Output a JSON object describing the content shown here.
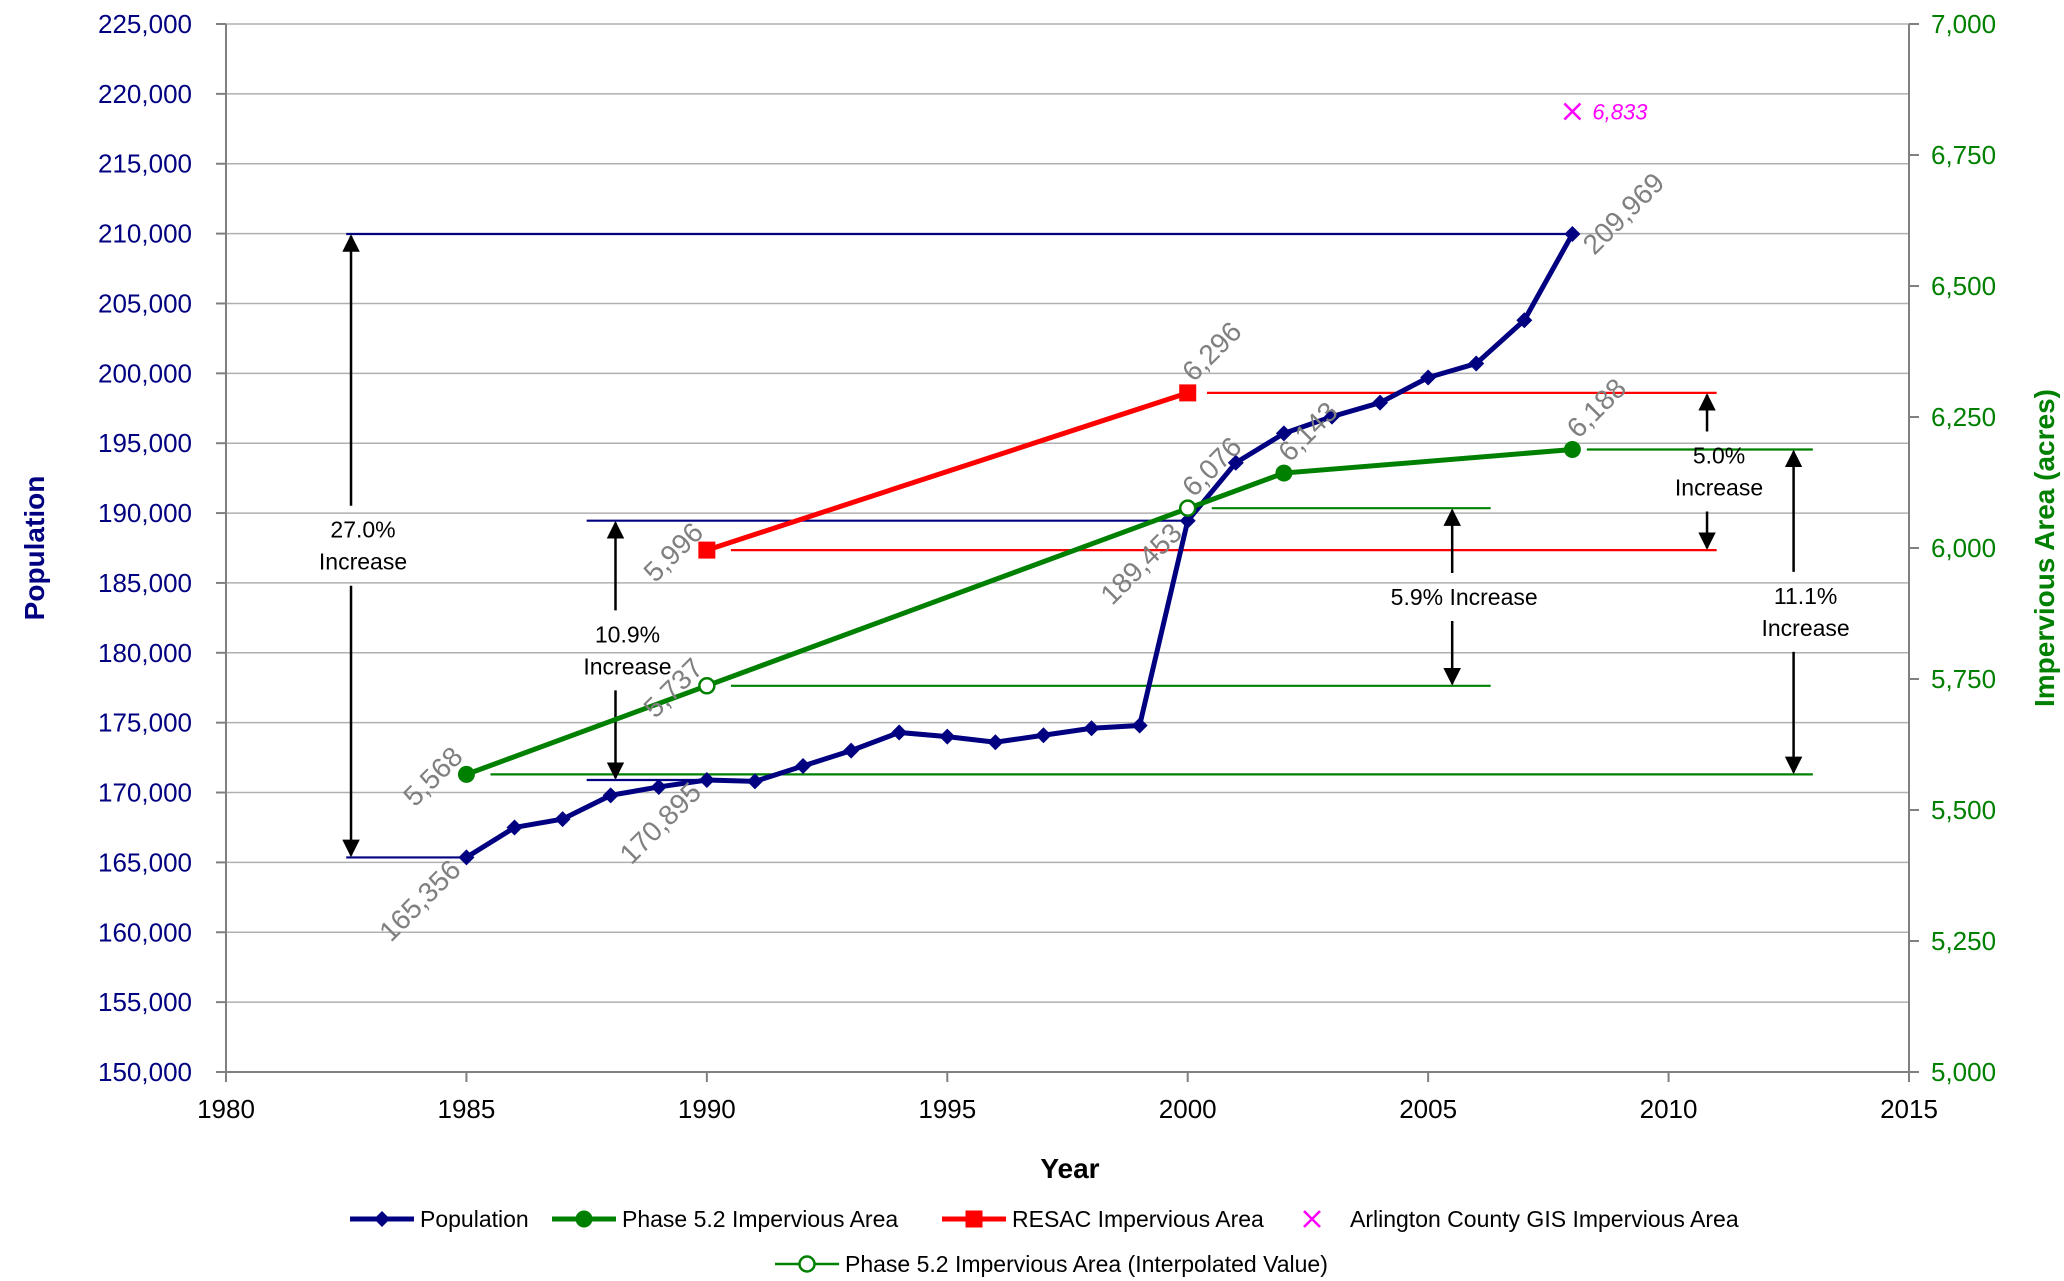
{
  "chart_data": {
    "type": "line",
    "title": "",
    "xlabel": "Year",
    "ylabel": "Population",
    "y2label": "Impervious Area (acres)",
    "xlim": [
      1980,
      2015
    ],
    "xticks": [
      "1980",
      "1985",
      "1990",
      "1995",
      "2000",
      "2005",
      "2010",
      "2015"
    ],
    "ylim": [
      150000,
      225000
    ],
    "yticks": [
      "150,000",
      "155,000",
      "160,000",
      "165,000",
      "170,000",
      "175,000",
      "180,000",
      "185,000",
      "190,000",
      "195,000",
      "200,000",
      "205,000",
      "210,000",
      "215,000",
      "220,000",
      "225,000"
    ],
    "y2lim": [
      5000,
      7000
    ],
    "y2ticks": [
      "5,000",
      "5,250",
      "5,500",
      "5,750",
      "6,000",
      "6,250",
      "6,500",
      "6,750",
      "7,000"
    ],
    "grid": true,
    "legend_position": "bottom",
    "colors": {
      "population": "#000080",
      "phase": "#008000",
      "resac": "#ff0000",
      "gis": "#ff00ff",
      "label_gray": "#808080",
      "left_axis_text": "#000080",
      "right_axis_text": "#008000"
    },
    "series": [
      {
        "name": "Population",
        "axis": "left",
        "x": [
          1985,
          1986,
          1987,
          1988,
          1989,
          1990,
          1991,
          1992,
          1993,
          1994,
          1995,
          1996,
          1997,
          1998,
          1999,
          2000,
          2001,
          2002,
          2003,
          2004,
          2005,
          2006,
          2007,
          2008
        ],
        "y": [
          165356,
          167500,
          168100,
          169800,
          170400,
          170895,
          170800,
          171900,
          173000,
          174300,
          174000,
          173600,
          174100,
          174600,
          174800,
          189453,
          193600,
          195700,
          196900,
          197900,
          199700,
          200700,
          203800,
          209969
        ]
      },
      {
        "name": "Phase 5.2 Impervious Area",
        "axis": "right",
        "x": [
          1985,
          2002,
          2008
        ],
        "y": [
          5568,
          6143,
          6188
        ]
      },
      {
        "name": "RESAC Impervious Area",
        "axis": "right",
        "x": [
          1990,
          2000
        ],
        "y": [
          5996,
          6296
        ]
      },
      {
        "name": "Arlington County GIS Impervious Area",
        "axis": "right",
        "x": [
          2008
        ],
        "y": [
          6833
        ]
      },
      {
        "name": "Phase 5.2 Impervious Area (Interpolated Value)",
        "axis": "right",
        "x": [
          1990,
          2000
        ],
        "y": [
          5737,
          6076
        ]
      }
    ],
    "data_labels": [
      {
        "text": "165,356",
        "x": 1985,
        "y": 165356,
        "axis": "left"
      },
      {
        "text": "170,895",
        "x": 1990,
        "y": 170895,
        "axis": "left"
      },
      {
        "text": "189,453",
        "x": 2000,
        "y": 189453,
        "axis": "left"
      },
      {
        "text": "209,969",
        "x": 2008,
        "y": 209969,
        "axis": "left"
      },
      {
        "text": "5,568",
        "x": 1985,
        "y": 5568,
        "axis": "right"
      },
      {
        "text": "5,737",
        "x": 1990,
        "y": 5737,
        "axis": "right"
      },
      {
        "text": "5,996",
        "x": 1990,
        "y": 5996,
        "axis": "right"
      },
      {
        "text": "6,076",
        "x": 2000,
        "y": 6076,
        "axis": "right"
      },
      {
        "text": "6,296",
        "x": 2000,
        "y": 6296,
        "axis": "right"
      },
      {
        "text": "6,143",
        "x": 2002,
        "y": 6143,
        "axis": "right"
      },
      {
        "text": "6,188",
        "x": 2008,
        "y": 6188,
        "axis": "right"
      },
      {
        "text": "6,833",
        "x": 2008,
        "y": 6833,
        "axis": "right"
      }
    ],
    "reference_lines": [
      {
        "axis": "left",
        "value": 209969,
        "x_from": 1982.5,
        "x_to": 2008,
        "color": "population"
      },
      {
        "axis": "left",
        "value": 165356,
        "x_from": 1982.5,
        "x_to": 1985,
        "color": "population"
      },
      {
        "axis": "left",
        "value": 189453,
        "x_from": 1987.5,
        "x_to": 2000,
        "color": "population"
      },
      {
        "axis": "left",
        "value": 170895,
        "x_from": 1987.5,
        "x_to": 1990,
        "color": "population"
      },
      {
        "axis": "right",
        "value": 6296,
        "x_from": 2000.4,
        "x_to": 2011,
        "color": "resac"
      },
      {
        "axis": "right",
        "value": 5996,
        "x_from": 1990.5,
        "x_to": 2011,
        "color": "resac"
      },
      {
        "axis": "right",
        "value": 6076,
        "x_from": 2000.5,
        "x_to": 2006.3,
        "color": "phase"
      },
      {
        "axis": "right",
        "value": 5737,
        "x_from": 1990.5,
        "x_to": 2006.3,
        "color": "phase"
      },
      {
        "axis": "right",
        "value": 6188,
        "x_from": 2008.3,
        "x_to": 2013.0,
        "color": "phase"
      },
      {
        "axis": "right",
        "value": 5568,
        "x_from": 1985.5,
        "x_to": 2013.0,
        "color": "phase"
      }
    ],
    "annotations": [
      {
        "text": [
          "27.0%",
          "Increase"
        ],
        "x": 1982.6,
        "axis": "left",
        "from": 165356,
        "to": 209969
      },
      {
        "text": [
          "10.9%",
          "Increase"
        ],
        "x": 1988.1,
        "axis": "left",
        "from": 170895,
        "to": 189453
      },
      {
        "text": [
          "5.9% Increase"
        ],
        "x": 2005.5,
        "axis": "right",
        "from": 5737,
        "to": 6076
      },
      {
        "text": [
          "5.0%",
          "Increase"
        ],
        "x": 2010.8,
        "axis": "right",
        "from": 5996,
        "to": 6296
      },
      {
        "text": [
          "11.1%",
          "Increase"
        ],
        "x": 2012.6,
        "axis": "right",
        "from": 5568,
        "to": 6188
      }
    ]
  }
}
